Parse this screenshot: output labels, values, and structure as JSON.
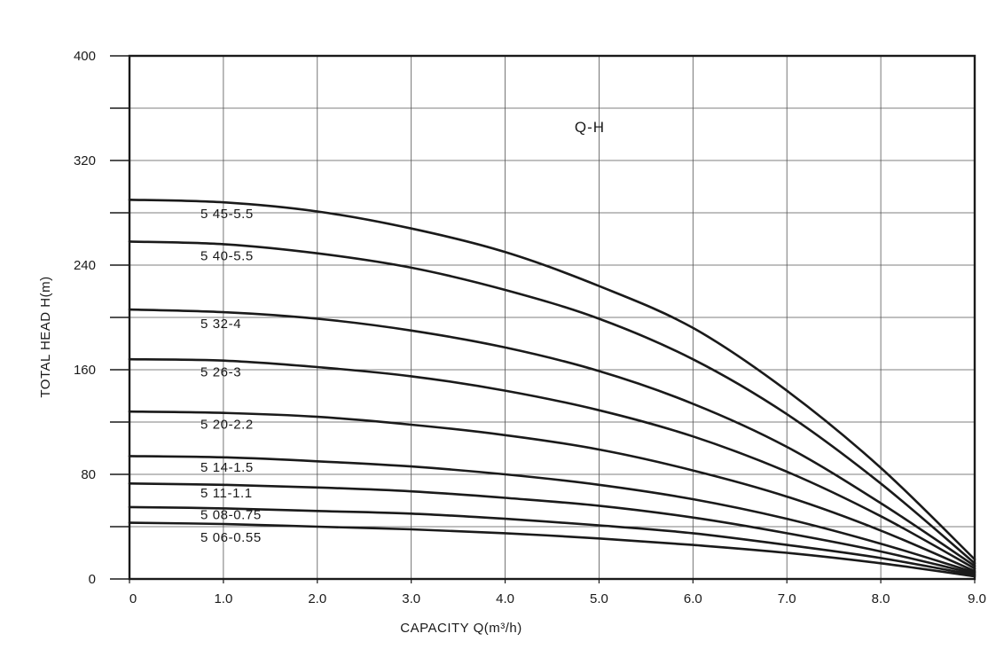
{
  "chart_data": {
    "type": "line",
    "title": "Q-H",
    "xlabel": "CAPACITY  Q(m³/h)",
    "ylabel": "TOTAL HEAD  H(m)",
    "xlim": [
      0,
      9
    ],
    "ylim": [
      0,
      400
    ],
    "x_ticks": [
      0,
      1,
      2,
      3,
      4,
      5,
      6,
      7,
      8,
      9
    ],
    "x_tick_labels": [
      "0",
      "1.0",
      "2.0",
      "3.0",
      "4.0",
      "5.0",
      "6.0",
      "7.0",
      "8.0",
      "9.0"
    ],
    "y_ticks": [
      0,
      80,
      160,
      240,
      320,
      400
    ],
    "y_tick_labels": [
      "0",
      "80",
      "160",
      "240",
      "320",
      "400"
    ],
    "y_gridlines": [
      0,
      40,
      80,
      120,
      160,
      200,
      240,
      280,
      320,
      360,
      400
    ],
    "grid": true,
    "series": [
      {
        "name": "5 45-5.5",
        "x": [
          0,
          1,
          2,
          3,
          4,
          5,
          6,
          7,
          8,
          9
        ],
        "y": [
          290,
          288,
          281,
          268,
          250,
          224,
          192,
          144,
          85,
          15
        ]
      },
      {
        "name": "5 40-5.5",
        "x": [
          0,
          1,
          2,
          3,
          4,
          5,
          6,
          7,
          8,
          9
        ],
        "y": [
          258,
          256,
          249,
          238,
          221,
          199,
          168,
          126,
          73,
          12
        ]
      },
      {
        "name": "5 32-4",
        "x": [
          0,
          1,
          2,
          3,
          4,
          5,
          6,
          7,
          8,
          9
        ],
        "y": [
          206,
          204,
          199,
          190,
          177,
          159,
          134,
          101,
          58,
          10
        ]
      },
      {
        "name": "5 26-3",
        "x": [
          0,
          1,
          2,
          3,
          4,
          5,
          6,
          7,
          8,
          9
        ],
        "y": [
          168,
          167,
          162,
          155,
          144,
          129,
          109,
          82,
          48,
          8
        ]
      },
      {
        "name": "5 20-2.2",
        "x": [
          0,
          1,
          2,
          3,
          4,
          5,
          6,
          7,
          8,
          9
        ],
        "y": [
          128,
          127,
          124,
          118,
          110,
          99,
          83,
          63,
          37,
          6
        ]
      },
      {
        "name": "5 14-1.5",
        "x": [
          0,
          1,
          2,
          3,
          4,
          5,
          6,
          7,
          8,
          9
        ],
        "y": [
          94,
          93,
          90,
          86,
          80,
          72,
          61,
          46,
          27,
          5
        ]
      },
      {
        "name": "5 11-1.1",
        "x": [
          0,
          1,
          2,
          3,
          4,
          5,
          6,
          7,
          8,
          9
        ],
        "y": [
          73,
          72,
          70,
          67,
          62,
          56,
          47,
          35,
          21,
          4
        ]
      },
      {
        "name": "5 08-0.75",
        "x": [
          0,
          1,
          2,
          3,
          4,
          5,
          6,
          7,
          8,
          9
        ],
        "y": [
          55,
          54,
          52,
          50,
          46,
          41,
          35,
          26,
          16,
          3
        ]
      },
      {
        "name": "5 06-0.55",
        "x": [
          0,
          1,
          2,
          3,
          4,
          5,
          6,
          7,
          8,
          9
        ],
        "y": [
          43,
          42,
          40,
          38,
          35,
          31,
          26,
          20,
          12,
          2
        ]
      }
    ],
    "line_color": "#1a1a1a"
  }
}
